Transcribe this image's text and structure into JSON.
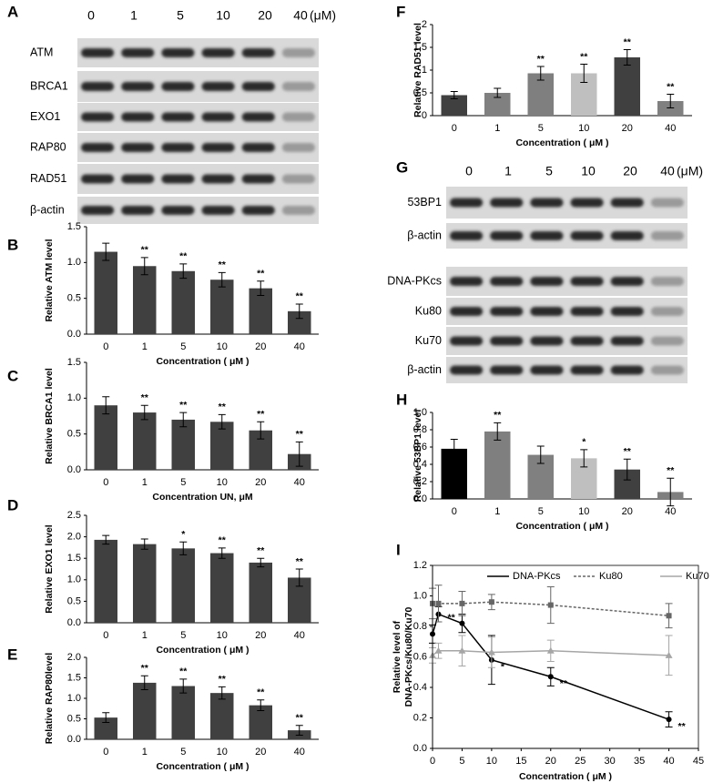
{
  "blots": [
    {
      "label": "A",
      "lanes": [
        "0",
        "1",
        "5",
        "10",
        "20",
        "40"
      ],
      "unit": "(μM)",
      "rows": [
        "ATM",
        "BRCA1",
        "EXO1",
        "RAP80",
        "RAD51",
        "β-actin"
      ]
    },
    {
      "label": "G",
      "lanes": [
        "0",
        "1",
        "5",
        "10",
        "20",
        "40"
      ],
      "unit": "(μM)",
      "rows": [
        "53BP1",
        "β-actin",
        "DNA-PKcs",
        "Ku80",
        "Ku70",
        "β-actin"
      ]
    }
  ],
  "chart_data": [
    {
      "type": "bar",
      "label": "B",
      "ylabel": "Relative ATM level",
      "xlabel": "Concentration ( μM )",
      "categories": [
        "0",
        "1",
        "5",
        "10",
        "20",
        "40"
      ],
      "values": [
        1.15,
        0.95,
        0.88,
        0.76,
        0.64,
        0.32
      ],
      "errors": [
        0.12,
        0.12,
        0.1,
        0.1,
        0.1,
        0.1
      ],
      "significance": [
        null,
        "**",
        "**",
        "**",
        "**",
        "**"
      ],
      "color": "#404040",
      "ylim": [
        0,
        1.5
      ],
      "yticks": [
        {
          "value": 0,
          "label": "0.0"
        },
        {
          "value": 0.5,
          "label": "0.5"
        },
        {
          "value": 1,
          "label": "1.0"
        },
        {
          "value": 1.5,
          "label": "1.5"
        }
      ]
    },
    {
      "type": "bar",
      "label": "C",
      "ylabel": "Relative BRCA1 level",
      "xlabel": "Concentration UN, μM",
      "categories": [
        "0",
        "1",
        "5",
        "10",
        "20",
        "40"
      ],
      "values": [
        0.9,
        0.8,
        0.7,
        0.67,
        0.55,
        0.22
      ],
      "errors": [
        0.12,
        0.1,
        0.1,
        0.1,
        0.12,
        0.17
      ],
      "significance": [
        null,
        "**",
        "**",
        "**",
        "**",
        "**"
      ],
      "color": "#404040",
      "ylim": [
        0,
        1.5
      ],
      "yticks": [
        {
          "value": 0,
          "label": "0.0"
        },
        {
          "value": 0.5,
          "label": "0.5"
        },
        {
          "value": 1,
          "label": "1.0"
        },
        {
          "value": 1.5,
          "label": "1.5"
        }
      ]
    },
    {
      "type": "bar",
      "label": "D",
      "ylabel": "Relative EXO1 level",
      "xlabel": "Concentration ( μM )",
      "categories": [
        "0",
        "1",
        "5",
        "10",
        "20",
        "40"
      ],
      "values": [
        1.93,
        1.83,
        1.73,
        1.62,
        1.4,
        1.05
      ],
      "errors": [
        0.1,
        0.12,
        0.15,
        0.12,
        0.1,
        0.2
      ],
      "significance": [
        null,
        null,
        "*",
        "**",
        "**",
        "**"
      ],
      "color": "#404040",
      "ylim": [
        0,
        2.5
      ],
      "yticks": [
        {
          "value": 0,
          "label": "0.0"
        },
        {
          "value": 0.5,
          "label": "0.5"
        },
        {
          "value": 1,
          "label": "1.0"
        },
        {
          "value": 1.5,
          "label": "1.5"
        },
        {
          "value": 2,
          "label": "2.0"
        },
        {
          "value": 2.5,
          "label": "2.5"
        }
      ]
    },
    {
      "type": "bar",
      "label": "E",
      "ylabel": "Relative RAP80level",
      "xlabel": "Concentration ( μM )",
      "categories": [
        "0",
        "1",
        "5",
        "10",
        "20",
        "40"
      ],
      "values": [
        0.53,
        1.38,
        1.3,
        1.13,
        0.83,
        0.22
      ],
      "errors": [
        0.12,
        0.17,
        0.17,
        0.15,
        0.13,
        0.12
      ],
      "significance": [
        null,
        "**",
        "**",
        "**",
        "**",
        "**"
      ],
      "color": "#404040",
      "ylim": [
        0,
        2
      ],
      "yticks": [
        {
          "value": 0,
          "label": "0.0"
        },
        {
          "value": 0.5,
          "label": "0.5"
        },
        {
          "value": 1,
          "label": "1.0"
        },
        {
          "value": 1.5,
          "label": "1.5"
        },
        {
          "value": 2,
          "label": "2.0"
        }
      ]
    },
    {
      "type": "bar",
      "label": "F",
      "ylabel": "Relative RAD51 level",
      "xlabel": "Concentration ( μM )",
      "categories": [
        "0",
        "1",
        "5",
        "10",
        "20",
        "40"
      ],
      "values": [
        0.45,
        0.5,
        0.93,
        0.93,
        1.28,
        0.32
      ],
      "errors": [
        0.08,
        0.1,
        0.15,
        0.2,
        0.17,
        0.15
      ],
      "significance": [
        null,
        null,
        "**",
        "**",
        "**",
        "**"
      ],
      "colors": [
        "#404040",
        "#808080",
        "#7f7f7f",
        "#bfbfbf",
        "#404040",
        "#808080"
      ],
      "ylim": [
        0,
        2
      ],
      "yticks": [
        0,
        0.5,
        1,
        1.5,
        2
      ]
    },
    {
      "type": "bar",
      "label": "H",
      "ylabel": "Relative 53BP1 level",
      "xlabel": "Concentration ( μM )",
      "categories": [
        "0",
        "1",
        "5",
        "10",
        "20",
        "40"
      ],
      "values": [
        0.58,
        0.78,
        0.51,
        0.47,
        0.34,
        0.08
      ],
      "errors": [
        0.11,
        0.1,
        0.1,
        0.1,
        0.12,
        0.16
      ],
      "significance": [
        null,
        "**",
        null,
        "*",
        "**",
        "**"
      ],
      "colors": [
        "#000000",
        "#7f7f7f",
        "#808080",
        "#bfbfbf",
        "#404040",
        "#7f7f7f"
      ],
      "ylim": [
        0,
        1
      ],
      "yticks": [
        {
          "value": 0,
          "label": "0.0"
        },
        {
          "value": 0.2,
          "label": "0.2"
        },
        {
          "value": 0.4,
          "label": "0.4"
        },
        {
          "value": 0.6,
          "label": "0.6"
        },
        {
          "value": 0.8,
          "label": "0.8"
        },
        {
          "value": 1,
          "label": "1.0"
        }
      ]
    },
    {
      "type": "line",
      "label": "I",
      "ylabel": [
        "Relative level of",
        "DNA-PKcs/Ku80/Ku70"
      ],
      "xlabel": "Concentration ( μM )",
      "x": [
        0,
        1,
        5,
        10,
        20,
        40
      ],
      "series": [
        {
          "name": "DNA-PKcs",
          "color": "#000000",
          "values": [
            0.75,
            0.88,
            0.82,
            0.58,
            0.47,
            0.19
          ],
          "errors": [
            0.06,
            0.05,
            0.06,
            0.16,
            0.06,
            0.05
          ],
          "significance": [
            null,
            "**",
            null,
            "*",
            "**",
            "**"
          ]
        },
        {
          "name": "Ku80",
          "color": "#666666",
          "values": [
            0.95,
            0.95,
            0.95,
            0.96,
            0.94,
            0.87
          ],
          "errors": [
            0.1,
            0.12,
            0.08,
            0.05,
            0.12,
            0.08
          ]
        },
        {
          "name": "Ku70",
          "color": "#a6a6a6",
          "values": [
            0.61,
            0.64,
            0.64,
            0.63,
            0.64,
            0.61
          ],
          "errors": [
            0.05,
            0.05,
            0.1,
            0.1,
            0.07,
            0.13
          ]
        }
      ],
      "xlim": [
        0,
        45
      ],
      "xticks": [
        0,
        5,
        10,
        15,
        20,
        25,
        30,
        35,
        40,
        45
      ],
      "ylim": [
        0,
        1.2
      ],
      "yticks": [
        {
          "value": 0,
          "label": "0.0"
        },
        {
          "value": 0.2,
          "label": "0.2"
        },
        {
          "value": 0.4,
          "label": "0.4"
        },
        {
          "value": 0.6,
          "label": "0.6"
        },
        {
          "value": 0.8,
          "label": "0.8"
        },
        {
          "value": 1,
          "label": "1.0"
        },
        {
          "value": 1.2,
          "label": "1.2"
        }
      ]
    }
  ]
}
